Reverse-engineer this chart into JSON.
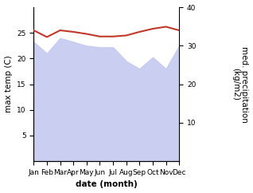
{
  "months": [
    "Jan",
    "Feb",
    "Mar",
    "Apr",
    "May",
    "Jun",
    "Jul",
    "Aug",
    "Sep",
    "Oct",
    "Nov",
    "Dec"
  ],
  "month_indices": [
    0,
    1,
    2,
    3,
    4,
    5,
    6,
    7,
    8,
    9,
    10,
    11
  ],
  "max_temp": [
    25.5,
    24.2,
    25.5,
    25.2,
    24.8,
    24.3,
    24.3,
    24.5,
    25.2,
    25.8,
    26.2,
    25.5
  ],
  "precipitation": [
    155,
    140,
    160,
    155,
    150,
    148,
    148,
    130,
    120,
    135,
    120,
    150
  ],
  "temp_color": "#c0392b",
  "precip_fill_color": "#c5caf0",
  "temp_ylim": [
    0,
    30
  ],
  "precip_ylim": [
    0,
    200
  ],
  "precip_ylim_display": [
    0,
    40
  ],
  "temp_yticks": [
    5,
    10,
    15,
    20,
    25
  ],
  "precip_yticks": [
    10,
    20,
    30,
    40
  ],
  "precip_ytick_vals": [
    50,
    100,
    150,
    200
  ],
  "xlabel": "date (month)",
  "ylabel_left": "max temp (C)",
  "ylabel_right": "med. precipitation\n(kg/m2)",
  "label_fontsize": 7.5,
  "tick_fontsize": 6.5
}
